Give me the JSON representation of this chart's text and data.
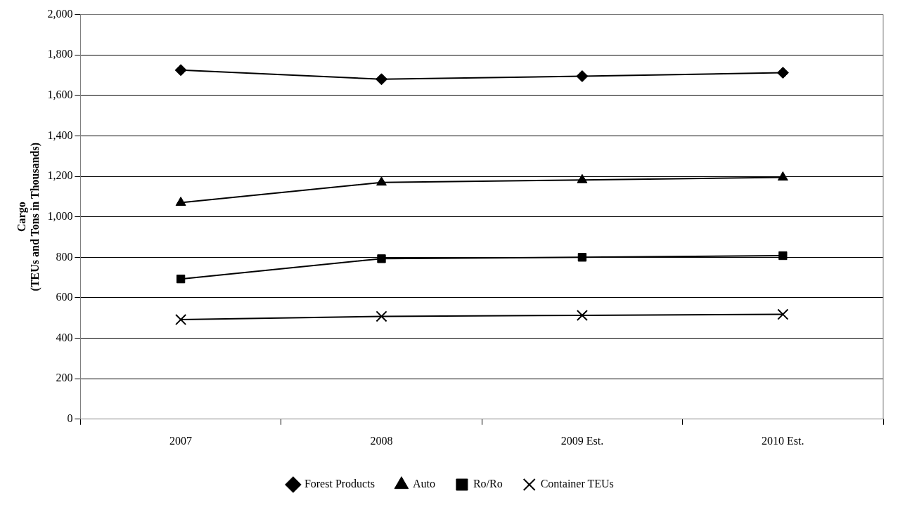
{
  "chart_data": {
    "type": "line",
    "ylabel": "Cargo\n(TEUs and Tons in Thousands)",
    "categories": [
      "2007",
      "2008",
      "2009 Est.",
      "2010 Est."
    ],
    "series": [
      {
        "name": "Forest Products",
        "color": "#000000",
        "marker": "diamond",
        "values": [
          1725,
          1680,
          1695,
          1712
        ]
      },
      {
        "name": "Auto",
        "color": "#000000",
        "marker": "triangle",
        "values": [
          1070,
          1170,
          1182,
          1195
        ]
      },
      {
        "name": "Ro/Ro",
        "color": "#000000",
        "marker": "square",
        "values": [
          693,
          793,
          800,
          808
        ]
      },
      {
        "name": "Container TEUs",
        "color": "#000000",
        "marker": "cross",
        "values": [
          492,
          508,
          513,
          518
        ]
      }
    ],
    "ylim": [
      0,
      2000
    ],
    "yticks": [
      0,
      200,
      400,
      600,
      800,
      {
        "value": 1000,
        "label": "1,000"
      },
      {
        "value": 1200,
        "label": "1,200"
      },
      {
        "value": 1400,
        "label": "1,400"
      },
      {
        "value": 1600,
        "label": "1,600"
      },
      {
        "value": 1800,
        "label": "1,800"
      },
      {
        "value": 2000,
        "label": "2,000"
      }
    ],
    "grid": "y",
    "legend": "bottom",
    "line_style": "solid"
  }
}
